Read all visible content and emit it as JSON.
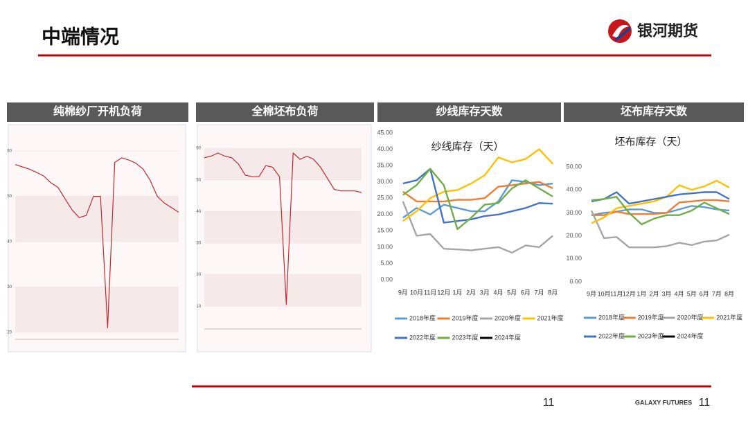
{
  "header": {
    "title": "中端情况",
    "logo_text": "银河期货"
  },
  "footer": {
    "page_center": "11",
    "brand": "GALAXY FUTURES",
    "page_right": "11"
  },
  "chart_data": [
    {
      "type": "line",
      "title": "纯棉纱厂开机负荷",
      "color": "#c0282e",
      "categories": [
        null,
        null,
        null,
        null,
        null,
        null,
        null,
        null,
        null,
        null,
        null,
        null,
        null,
        null,
        null,
        null,
        null,
        null,
        null,
        null,
        null,
        null,
        null,
        null
      ],
      "values": [
        57,
        56.5,
        56,
        55.3,
        54.5,
        53,
        52,
        49.5,
        47,
        45.3,
        45.8,
        50,
        50,
        21,
        57.5,
        58.5,
        58,
        57.3,
        56,
        53.5,
        50,
        48.5,
        47.5,
        46.5
      ],
      "ylim": [
        20,
        62
      ],
      "yticks": [
        20,
        30,
        40,
        50,
        60
      ],
      "grid": true
    },
    {
      "type": "line",
      "title": "全棉坯布负荷",
      "color": "#c0282e",
      "categories": [
        null,
        null,
        null,
        null,
        null,
        null,
        null,
        null,
        null,
        null,
        null,
        null,
        null,
        null,
        null,
        null,
        null,
        null,
        null,
        null,
        null,
        null,
        null,
        null
      ],
      "values": [
        57,
        57.5,
        58.5,
        57.5,
        57,
        55,
        51.5,
        51,
        51,
        54.5,
        54,
        51,
        10.5,
        58.5,
        56.5,
        57.5,
        56.5,
        54,
        50.5,
        47,
        46.5,
        46.5,
        46.5,
        46
      ],
      "ylim": [
        5,
        62
      ],
      "yticks": [
        10,
        20,
        30,
        40,
        50,
        60
      ],
      "grid": true
    },
    {
      "type": "line",
      "title": "纱线库存天数",
      "subtitle": "纱线库存（天）",
      "categories": [
        "9月",
        "10月",
        "11月",
        "12月",
        "1月",
        "2月",
        "3月",
        "4月",
        "5月",
        "6月",
        "7月",
        "8月"
      ],
      "ylim": [
        0,
        45
      ],
      "yticks": [
        {
          "value": 0,
          "label": "0.00"
        },
        {
          "value": 5,
          "label": "5.00"
        },
        {
          "value": 10,
          "label": "10.00"
        },
        {
          "value": 15,
          "label": "15.00"
        },
        {
          "value": 20,
          "label": "20.00"
        },
        {
          "value": 25,
          "label": "25.00"
        },
        {
          "value": 30,
          "label": "30.00"
        },
        {
          "value": 35,
          "label": "35.00"
        },
        {
          "value": 40,
          "label": "40.00"
        },
        {
          "value": 45,
          "label": "45.00"
        }
      ],
      "grid": false,
      "series": [
        {
          "name": "2018年度",
          "color": "#5b9bd5",
          "values": [
            19,
            22,
            20,
            23,
            22,
            21,
            21,
            24,
            30.5,
            30,
            29,
            29.5
          ]
        },
        {
          "name": "2019年度",
          "color": "#ed7d31",
          "values": [
            27,
            24,
            24,
            24,
            24.5,
            24.5,
            25,
            28.5,
            29,
            29.5,
            30,
            28
          ]
        },
        {
          "name": "2020年度",
          "color": "#a5a5a5",
          "values": [
            24,
            13.5,
            14,
            9.5,
            9.3,
            9,
            9.5,
            10,
            8.3,
            10.5,
            10,
            13.5
          ]
        },
        {
          "name": "2021年度",
          "color": "#ffc000",
          "values": [
            18,
            21,
            25,
            27,
            27.5,
            29.5,
            32,
            37.5,
            36,
            37,
            40,
            35.5
          ]
        },
        {
          "name": "2022年度",
          "color": "#4472c4",
          "values": [
            29.5,
            30.5,
            34,
            17.5,
            18,
            18.5,
            19.5,
            20,
            21,
            22,
            23.5,
            23.3
          ]
        },
        {
          "name": "2023年度",
          "color": "#70ad47",
          "values": [
            26,
            29,
            34,
            29,
            15.5,
            19,
            23,
            23.5,
            28,
            30.5,
            28,
            25.5
          ]
        },
        {
          "name": "2024年度",
          "color": "#000000",
          "values": [
            null,
            null,
            null,
            null,
            null,
            null,
            null,
            null,
            null,
            null,
            null,
            null
          ]
        }
      ]
    },
    {
      "type": "line",
      "title": "坯布库存天数",
      "subtitle": "坯布库存（天）",
      "categories": [
        "9月",
        "10月",
        "11月",
        "12月",
        "1月",
        "2月",
        "3月",
        "4月",
        "5月",
        "6月",
        "7月",
        "8月"
      ],
      "ylim": [
        0,
        50
      ],
      "yticks": [
        {
          "value": 0,
          "label": "0.00"
        },
        {
          "value": 10,
          "label": "10.00"
        },
        {
          "value": 20,
          "label": "20.00"
        },
        {
          "value": 30,
          "label": "30.00"
        },
        {
          "value": 40,
          "label": "40.00"
        },
        {
          "value": 50,
          "label": "50.00"
        }
      ],
      "grid": false,
      "series": [
        {
          "name": "2018年度",
          "color": "#5b9bd5",
          "values": [
            29,
            30,
            30.5,
            31.5,
            31.5,
            30,
            30,
            31.5,
            33,
            32.5,
            31.5,
            31
          ]
        },
        {
          "name": "2019年度",
          "color": "#ed7d31",
          "values": [
            29,
            29,
            30.5,
            29.5,
            29.5,
            29.5,
            30,
            34.5,
            35,
            35.5,
            35.5,
            35
          ]
        },
        {
          "name": "2020年度",
          "color": "#a5a5a5",
          "values": [
            31,
            19,
            19.5,
            15,
            15,
            15,
            15.5,
            17,
            16,
            17.5,
            18,
            20.5
          ]
        },
        {
          "name": "2021年度",
          "color": "#ffc000",
          "values": [
            25.5,
            28,
            32,
            33,
            34,
            35,
            37,
            42,
            40,
            41.5,
            44,
            41
          ]
        },
        {
          "name": "2022年度",
          "color": "#4472c4",
          "values": [
            35,
            36,
            39,
            34,
            35,
            36,
            37,
            38,
            38.5,
            39,
            39,
            36
          ]
        },
        {
          "name": "2023年度",
          "color": "#70ad47",
          "values": [
            35.5,
            36,
            37,
            30,
            25,
            27.5,
            29,
            29,
            31,
            34.5,
            32,
            29.5
          ]
        },
        {
          "name": "2024年度",
          "color": "#000000",
          "values": [
            null,
            null,
            null,
            null,
            null,
            null,
            null,
            null,
            null,
            null,
            null,
            null
          ]
        }
      ]
    }
  ]
}
